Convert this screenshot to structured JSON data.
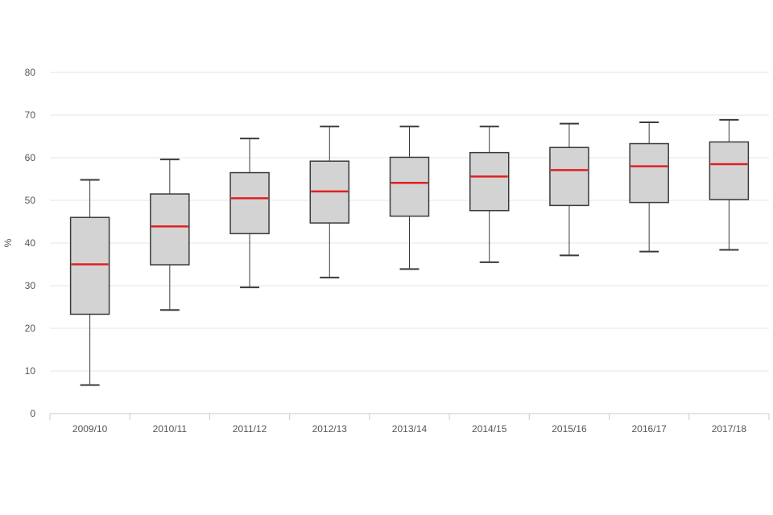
{
  "chart_data": {
    "type": "box",
    "title": "",
    "xlabel": "",
    "ylabel": "%",
    "ylim": [
      0,
      80
    ],
    "yticks": [
      0,
      10,
      20,
      30,
      40,
      50,
      60,
      70,
      80
    ],
    "grid": true,
    "categories": [
      "2009/10",
      "2010/11",
      "2011/12",
      "2012/13",
      "2013/14",
      "2014/15",
      "2015/16",
      "2016/17",
      "2017/18"
    ],
    "boxes": [
      {
        "min": 6.7,
        "q1": 23.3,
        "median": 35.0,
        "q3": 46.0,
        "max": 54.8
      },
      {
        "min": 24.3,
        "q1": 34.9,
        "median": 43.9,
        "q3": 51.5,
        "max": 59.6
      },
      {
        "min": 29.6,
        "q1": 42.2,
        "median": 50.5,
        "q3": 56.5,
        "max": 64.5
      },
      {
        "min": 31.9,
        "q1": 44.7,
        "median": 52.1,
        "q3": 59.2,
        "max": 67.3
      },
      {
        "min": 33.9,
        "q1": 46.3,
        "median": 54.1,
        "q3": 60.1,
        "max": 67.3
      },
      {
        "min": 35.5,
        "q1": 47.6,
        "median": 55.6,
        "q3": 61.2,
        "max": 67.3
      },
      {
        "min": 37.1,
        "q1": 48.8,
        "median": 57.1,
        "q3": 62.4,
        "max": 68.0
      },
      {
        "min": 38.0,
        "q1": 49.5,
        "median": 58.0,
        "q3": 63.3,
        "max": 68.3
      },
      {
        "min": 38.4,
        "q1": 50.2,
        "median": 58.5,
        "q3": 63.7,
        "max": 68.9
      }
    ],
    "colors": {
      "box_fill": "#d3d3d3",
      "box_stroke": "#3a3a3a",
      "median": "#e02020",
      "whisker": "#3a3a3a",
      "grid": "#e6e6e6",
      "axis": "#cccccc"
    }
  }
}
